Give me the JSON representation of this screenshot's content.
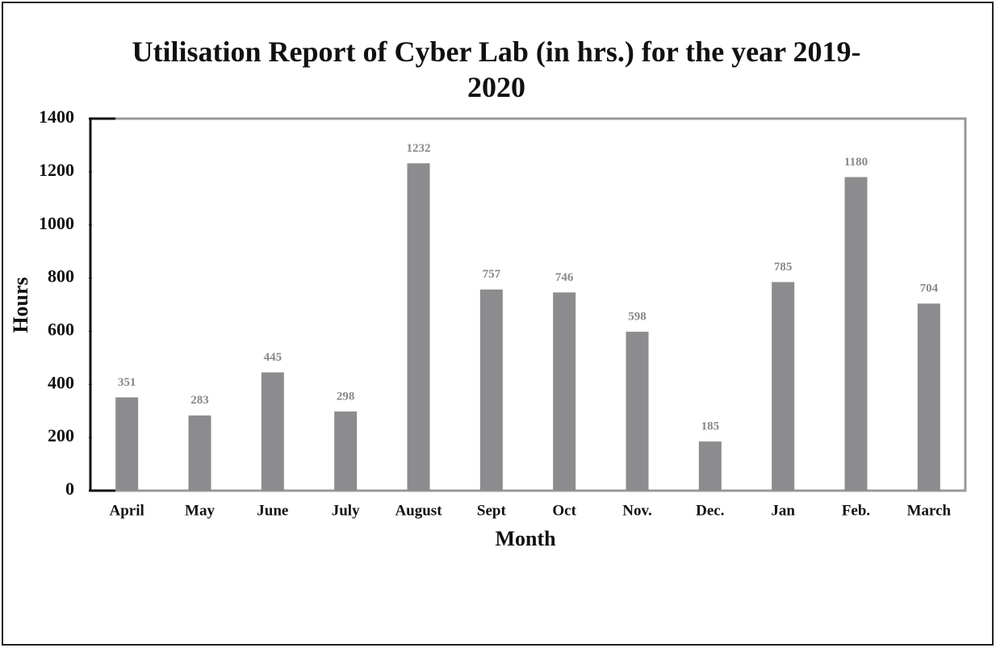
{
  "chart_data": {
    "type": "bar",
    "title": "Utilisation Report of Cyber Lab (in hrs.) for the year 2019-2020",
    "x_label": "Month",
    "y_label": "Hours",
    "categories": [
      "April",
      "May",
      "June",
      "July",
      "August",
      "Sept",
      "Oct",
      "Nov.",
      "Dec.",
      "Jan",
      "Feb.",
      "March"
    ],
    "values": [
      351,
      283,
      445,
      298,
      1232,
      757,
      746,
      598,
      185,
      785,
      1180,
      704
    ],
    "color": "#8c8c8e",
    "ylim": [
      0,
      1400
    ],
    "yticks": [
      0,
      200,
      400,
      600,
      800,
      1000,
      1200,
      1400
    ],
    "grid": false
  }
}
